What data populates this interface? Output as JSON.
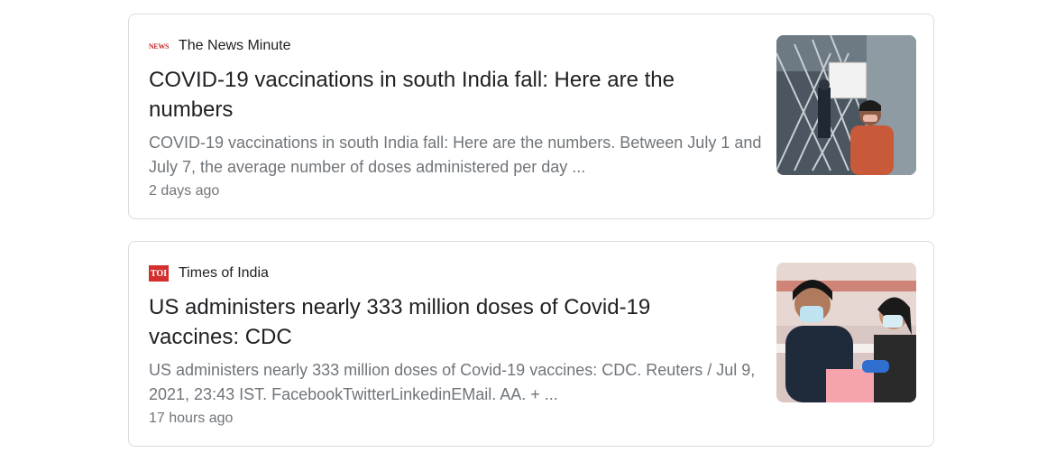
{
  "results": [
    {
      "source": "The News Minute",
      "favicon_text": "NEWS",
      "title": "COVID-19 vaccinations in south India fall: Here are the numbers",
      "snippet": "COVID-19 vaccinations in south India fall: Here are the numbers. Between July 1 and July 7, the average number of doses administered per day ...",
      "time": "2 days ago",
      "thumbnail_icon": "vaccination-center-photo"
    },
    {
      "source": "Times of India",
      "favicon_text": "TOI",
      "title": "US administers nearly 333 million doses of Covid-19 vaccines: CDC",
      "snippet": "US administers nearly 333 million doses of Covid-19 vaccines: CDC. Reuters / Jul 9, 2021, 23:43 IST. FacebookTwitterLinkedinEMail. AA. + ...",
      "time": "17 hours ago",
      "thumbnail_icon": "vaccine-injection-photo"
    }
  ],
  "colors": {
    "border": "#dadce0",
    "title": "#202124",
    "snippet": "#70757a",
    "toi_red": "#d32f2f"
  }
}
